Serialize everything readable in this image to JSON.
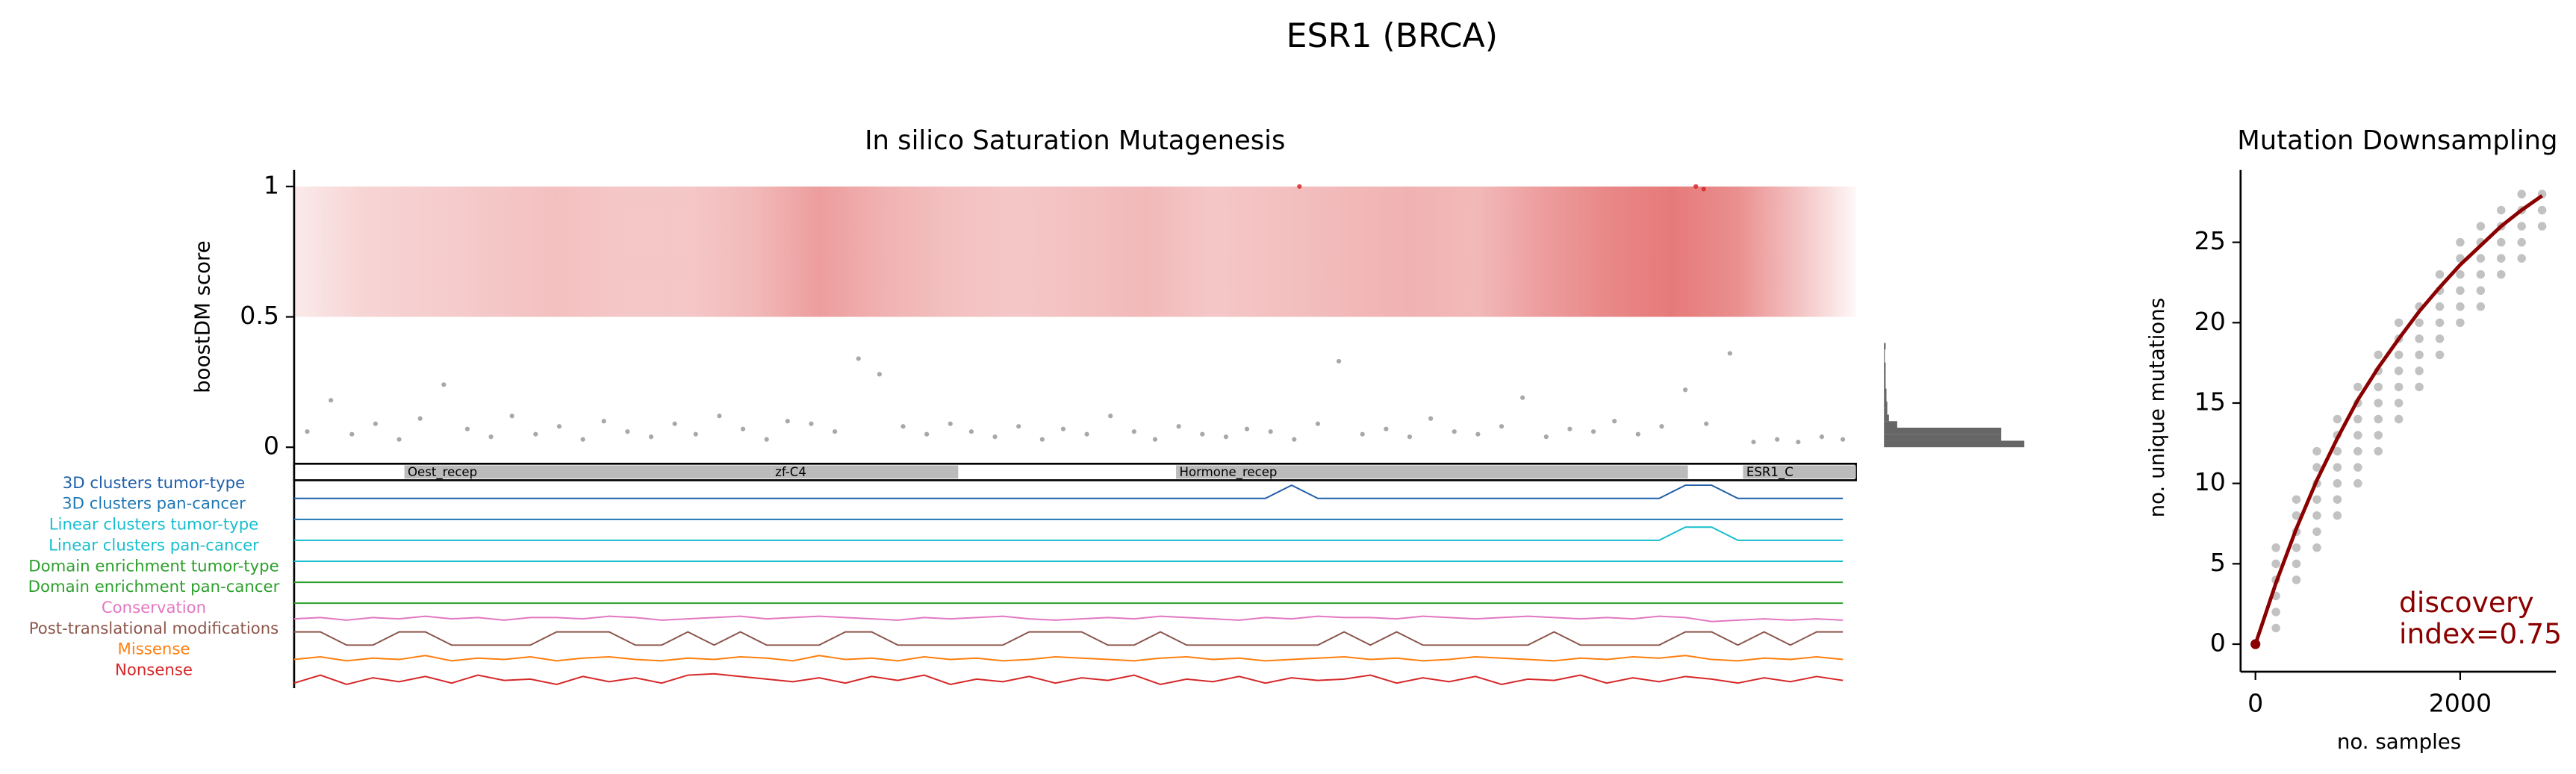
{
  "figure_title": "ESR1 (BRCA)",
  "chart_data": [
    {
      "type": "mutagenesis",
      "title": "In silico Saturation Mutagenesis",
      "ylabel": "boostDM score",
      "xlim": [
        0,
        595
      ],
      "ylim": [
        0,
        1.05
      ],
      "yticks": [
        0,
        0.5,
        1
      ],
      "heat_color": "#e57373",
      "heat_x": [
        0,
        25,
        50,
        75,
        100,
        125,
        150,
        175,
        200,
        225,
        250,
        275,
        300,
        325,
        350,
        375,
        400,
        425,
        450,
        475,
        500,
        525,
        550,
        575,
        595
      ],
      "heat": [
        0.15,
        0.3,
        0.35,
        0.4,
        0.45,
        0.4,
        0.4,
        0.5,
        0.7,
        0.55,
        0.45,
        0.4,
        0.45,
        0.5,
        0.4,
        0.45,
        0.5,
        0.55,
        0.5,
        0.7,
        0.85,
        0.95,
        0.8,
        0.4,
        0.05
      ],
      "series": [
        {
          "color": "#999999",
          "x": [
            5,
            14,
            22,
            31,
            40,
            48,
            57,
            66,
            75,
            83,
            92,
            101,
            110,
            118,
            127,
            136,
            145,
            153,
            162,
            171,
            180,
            188,
            197,
            206,
            215,
            223,
            232,
            241,
            250,
            258,
            267,
            276,
            285,
            293,
            302,
            311,
            320,
            328,
            337,
            346,
            355,
            363,
            372,
            381,
            390,
            398,
            407,
            416,
            425,
            433,
            442,
            451,
            460,
            468,
            477,
            486,
            495,
            503,
            512,
            521,
            530,
            538,
            547,
            556,
            565,
            573,
            582,
            590
          ],
          "values": [
            0.06,
            0.18,
            0.05,
            0.09,
            0.03,
            0.11,
            0.24,
            0.07,
            0.04,
            0.12,
            0.05,
            0.08,
            0.03,
            0.1,
            0.06,
            0.04,
            0.09,
            0.05,
            0.12,
            0.07,
            0.03,
            0.1,
            0.09,
            0.06,
            0.34,
            0.28,
            0.08,
            0.05,
            0.09,
            0.06,
            0.04,
            0.08,
            0.03,
            0.07,
            0.05,
            0.12,
            0.06,
            0.03,
            0.08,
            0.05,
            0.04,
            0.07,
            0.06,
            0.03,
            0.09,
            0.33,
            0.05,
            0.07,
            0.04,
            0.11,
            0.06,
            0.05,
            0.08,
            0.19,
            0.04,
            0.07,
            0.06,
            0.1,
            0.05,
            0.08,
            0.22,
            0.09,
            0.36,
            0.02,
            0.03,
            0.02,
            0.04,
            0.03
          ]
        },
        {
          "color": "#d62728",
          "x": [
            383,
            534,
            537
          ],
          "values": [
            1,
            1,
            0.99
          ]
        }
      ],
      "histogram": {
        "color": "#666666",
        "bins": [
          0,
          0.025,
          0.05,
          0.075,
          0.1,
          0.125,
          0.15,
          0.175,
          0.2,
          0.225,
          0.25,
          0.275,
          0.3,
          0.325,
          0.35,
          0.375,
          0.4
        ],
        "counts": [
          170,
          142,
          142,
          16,
          6,
          4,
          4,
          3,
          3,
          2,
          2,
          2,
          2,
          1,
          1,
          2
        ]
      },
      "domains": [
        {
          "name": "Oest_recep",
          "start": 42,
          "end": 182
        },
        {
          "name": "zf-C4",
          "start": 182,
          "end": 253
        },
        {
          "name": "Hormone_recep",
          "start": 336,
          "end": 531
        },
        {
          "name": "ESR1_C",
          "start": 552,
          "end": 595
        }
      ],
      "track_x": [
        0,
        10,
        20,
        30,
        40,
        50,
        60,
        70,
        80,
        90,
        100,
        110,
        120,
        130,
        140,
        150,
        160,
        170,
        180,
        190,
        200,
        210,
        220,
        230,
        240,
        250,
        260,
        270,
        280,
        290,
        300,
        310,
        320,
        330,
        340,
        350,
        360,
        370,
        380,
        390,
        400,
        410,
        420,
        430,
        440,
        450,
        460,
        470,
        480,
        490,
        500,
        510,
        520,
        530,
        540,
        550,
        560,
        570,
        580,
        590
      ],
      "tracks": [
        {
          "name": "3D clusters tumor-type",
          "color": "#1f5fa8",
          "values": [
            0,
            0,
            0,
            0,
            0,
            0,
            0,
            0,
            0,
            0,
            0,
            0,
            0,
            0,
            0,
            0,
            0,
            0,
            0,
            0,
            0,
            0,
            0,
            0,
            0,
            0,
            0,
            0,
            0,
            0,
            0,
            0,
            0,
            0,
            0,
            0,
            0,
            0,
            1,
            0,
            0,
            0,
            0,
            0,
            0,
            0,
            0,
            0,
            0,
            0,
            0,
            0,
            0,
            1,
            1,
            0,
            0,
            0,
            0,
            0
          ]
        },
        {
          "name": "3D clusters pan-cancer",
          "color": "#1f77b4",
          "values": [
            0,
            0,
            0,
            0,
            0,
            0,
            0,
            0,
            0,
            0,
            0,
            0,
            0,
            0,
            0,
            0,
            0,
            0,
            0,
            0,
            0,
            0,
            0,
            0,
            0,
            0,
            0,
            0,
            0,
            0,
            0,
            0,
            0,
            0,
            0,
            0,
            0,
            0,
            0,
            0,
            0,
            0,
            0,
            0,
            0,
            0,
            0,
            0,
            0,
            0,
            0,
            0,
            0,
            0,
            0,
            0,
            0,
            0,
            0,
            0
          ]
        },
        {
          "name": "Linear clusters tumor-type",
          "color": "#17becf",
          "values": [
            0,
            0,
            0,
            0,
            0,
            0,
            0,
            0,
            0,
            0,
            0,
            0,
            0,
            0,
            0,
            0,
            0,
            0,
            0,
            0,
            0,
            0,
            0,
            0,
            0,
            0,
            0,
            0,
            0,
            0,
            0,
            0,
            0,
            0,
            0,
            0,
            0,
            0,
            0,
            0,
            0,
            0,
            0,
            0,
            0,
            0,
            0,
            0,
            0,
            0,
            0,
            0,
            0,
            1,
            1,
            0,
            0,
            0,
            0,
            0
          ]
        },
        {
          "name": "Linear clusters pan-cancer",
          "color": "#17becf",
          "values": [
            0,
            0,
            0,
            0,
            0,
            0,
            0,
            0,
            0,
            0,
            0,
            0,
            0,
            0,
            0,
            0,
            0,
            0,
            0,
            0,
            0,
            0,
            0,
            0,
            0,
            0,
            0,
            0,
            0,
            0,
            0,
            0,
            0,
            0,
            0,
            0,
            0,
            0,
            0,
            0,
            0,
            0,
            0,
            0,
            0,
            0,
            0,
            0,
            0,
            0,
            0,
            0,
            0,
            0,
            0,
            0,
            0,
            0,
            0,
            0
          ]
        },
        {
          "name": "Domain enrichment tumor-type",
          "color": "#2ca02c",
          "values": [
            0,
            0,
            0,
            0,
            0,
            0,
            0,
            0,
            0,
            0,
            0,
            0,
            0,
            0,
            0,
            0,
            0,
            0,
            0,
            0,
            0,
            0,
            0,
            0,
            0,
            0,
            0,
            0,
            0,
            0,
            0,
            0,
            0,
            0,
            0,
            0,
            0,
            0,
            0,
            0,
            0,
            0,
            0,
            0,
            0,
            0,
            0,
            0,
            0,
            0,
            0,
            0,
            0,
            0,
            0,
            0,
            0,
            0,
            0,
            0
          ]
        },
        {
          "name": "Domain enrichment pan-cancer",
          "color": "#2ca02c",
          "values": [
            0,
            0,
            0,
            0,
            0,
            0,
            0,
            0,
            0,
            0,
            0,
            0,
            0,
            0,
            0,
            0,
            0,
            0,
            0,
            0,
            0,
            0,
            0,
            0,
            0,
            0,
            0,
            0,
            0,
            0,
            0,
            0,
            0,
            0,
            0,
            0,
            0,
            0,
            0,
            0,
            0,
            0,
            0,
            0,
            0,
            0,
            0,
            0,
            0,
            0,
            0,
            0,
            0,
            0,
            0,
            0,
            0,
            0,
            0,
            0
          ]
        },
        {
          "name": "Conservation",
          "color": "#e377c2",
          "values": [
            0.4,
            0.5,
            0.3,
            0.5,
            0.4,
            0.6,
            0.4,
            0.5,
            0.3,
            0.5,
            0.5,
            0.4,
            0.6,
            0.5,
            0.3,
            0.4,
            0.5,
            0.6,
            0.4,
            0.5,
            0.6,
            0.5,
            0.4,
            0.3,
            0.5,
            0.4,
            0.5,
            0.6,
            0.4,
            0.3,
            0.4,
            0.5,
            0.4,
            0.6,
            0.5,
            0.4,
            0.3,
            0.5,
            0.4,
            0.6,
            0.5,
            0.5,
            0.4,
            0.6,
            0.5,
            0.4,
            0.5,
            0.6,
            0.5,
            0.4,
            0.5,
            0.4,
            0.6,
            0.5,
            0.2,
            0.3,
            0.4,
            0.3,
            0.4,
            0.3
          ]
        },
        {
          "name": "Post-translational modifications",
          "color": "#8c564b",
          "values": [
            1,
            1,
            0,
            0,
            1,
            1,
            0,
            0,
            0,
            0,
            1,
            1,
            1,
            0,
            0,
            1,
            0,
            1,
            0,
            0,
            0,
            1,
            1,
            0,
            0,
            0,
            0,
            0,
            1,
            1,
            1,
            0,
            0,
            1,
            0,
            0,
            0,
            0,
            0,
            0,
            1,
            0,
            1,
            0,
            0,
            0,
            0,
            0,
            1,
            0,
            0,
            0,
            0,
            1,
            1,
            0,
            1,
            0,
            1,
            1
          ]
        },
        {
          "name": "Missense",
          "color": "#ff7f0e",
          "values": [
            0.5,
            0.7,
            0.4,
            0.6,
            0.5,
            0.8,
            0.4,
            0.6,
            0.5,
            0.7,
            0.4,
            0.6,
            0.7,
            0.5,
            0.4,
            0.6,
            0.5,
            0.7,
            0.6,
            0.4,
            0.8,
            0.5,
            0.6,
            0.4,
            0.7,
            0.5,
            0.6,
            0.4,
            0.5,
            0.7,
            0.6,
            0.5,
            0.4,
            0.6,
            0.7,
            0.5,
            0.6,
            0.4,
            0.5,
            0.6,
            0.7,
            0.5,
            0.6,
            0.4,
            0.5,
            0.7,
            0.6,
            0.5,
            0.4,
            0.6,
            0.5,
            0.7,
            0.6,
            0.8,
            0.5,
            0.4,
            0.6,
            0.5,
            0.7,
            0.5
          ]
        },
        {
          "name": "Nonsense",
          "color": "#d62728",
          "values": [
            0.3,
            0.9,
            0.2,
            0.7,
            0.4,
            0.8,
            0.3,
            0.9,
            0.5,
            0.6,
            0.2,
            0.8,
            0.4,
            0.7,
            0.3,
            0.9,
            1,
            0.8,
            0.6,
            0.4,
            0.7,
            0.3,
            0.8,
            0.5,
            0.9,
            0.2,
            0.6,
            0.4,
            0.8,
            0.3,
            0.7,
            0.5,
            0.9,
            0.2,
            0.6,
            0.4,
            0.8,
            0.3,
            0.7,
            0.5,
            0.6,
            0.9,
            0.3,
            0.7,
            0.4,
            0.8,
            0.2,
            0.6,
            0.5,
            0.9,
            0.3,
            0.7,
            0.4,
            0.8,
            0.6,
            0.3,
            0.7,
            0.4,
            0.8,
            0.5
          ]
        }
      ]
    },
    {
      "type": "scatter",
      "title": "Mutation Downsampling",
      "xlabel": "no. samples",
      "ylabel": "no. unique mutations",
      "xlim": [
        -145,
        2935
      ],
      "ylim": [
        -1.2,
        29.5
      ],
      "xticks": [
        0,
        2000
      ],
      "yticks": [
        0,
        5,
        10,
        15,
        20,
        25
      ],
      "color": "#777777",
      "x": [
        0,
        200,
        200,
        200,
        200,
        200,
        200,
        400,
        400,
        400,
        400,
        400,
        400,
        600,
        600,
        600,
        600,
        600,
        600,
        600,
        800,
        800,
        800,
        800,
        800,
        800,
        800,
        1000,
        1000,
        1000,
        1000,
        1000,
        1000,
        1000,
        1200,
        1200,
        1200,
        1200,
        1200,
        1200,
        1200,
        1400,
        1400,
        1400,
        1400,
        1400,
        1400,
        1400,
        1600,
        1600,
        1600,
        1600,
        1600,
        1600,
        1800,
        1800,
        1800,
        1800,
        1800,
        1800,
        2000,
        2000,
        2000,
        2000,
        2000,
        2000,
        2200,
        2200,
        2200,
        2200,
        2200,
        2200,
        2400,
        2400,
        2400,
        2400,
        2400,
        2600,
        2600,
        2600,
        2600,
        2600,
        2800,
        2800,
        2800
      ],
      "values": [
        0,
        1,
        2,
        3,
        4,
        5,
        6,
        4,
        5,
        6,
        7,
        8,
        9,
        6,
        7,
        8,
        9,
        10,
        11,
        12,
        8,
        9,
        10,
        11,
        12,
        13,
        14,
        10,
        11,
        12,
        13,
        14,
        15,
        16,
        12,
        13,
        14,
        15,
        16,
        17,
        18,
        14,
        15,
        16,
        17,
        18,
        19,
        20,
        16,
        17,
        18,
        19,
        20,
        21,
        18,
        19,
        20,
        21,
        22,
        23,
        20,
        21,
        22,
        23,
        24,
        25,
        21,
        22,
        23,
        24,
        25,
        26,
        23,
        24,
        25,
        26,
        27,
        24,
        25,
        26,
        27,
        28,
        26,
        27,
        28
      ],
      "curve": {
        "color": "#8b0000",
        "x": [
          0,
          200,
          400,
          600,
          800,
          1000,
          1200,
          1400,
          1600,
          1800,
          2000,
          2200,
          2400,
          2600,
          2800
        ],
        "values": [
          0,
          3.8,
          7.2,
          10.2,
          12.8,
          15.2,
          17.2,
          19,
          20.7,
          22.2,
          23.6,
          24.8,
          26,
          27,
          27.9
        ]
      },
      "annotation": [
        "discovery",
        "index=0.75"
      ]
    }
  ]
}
